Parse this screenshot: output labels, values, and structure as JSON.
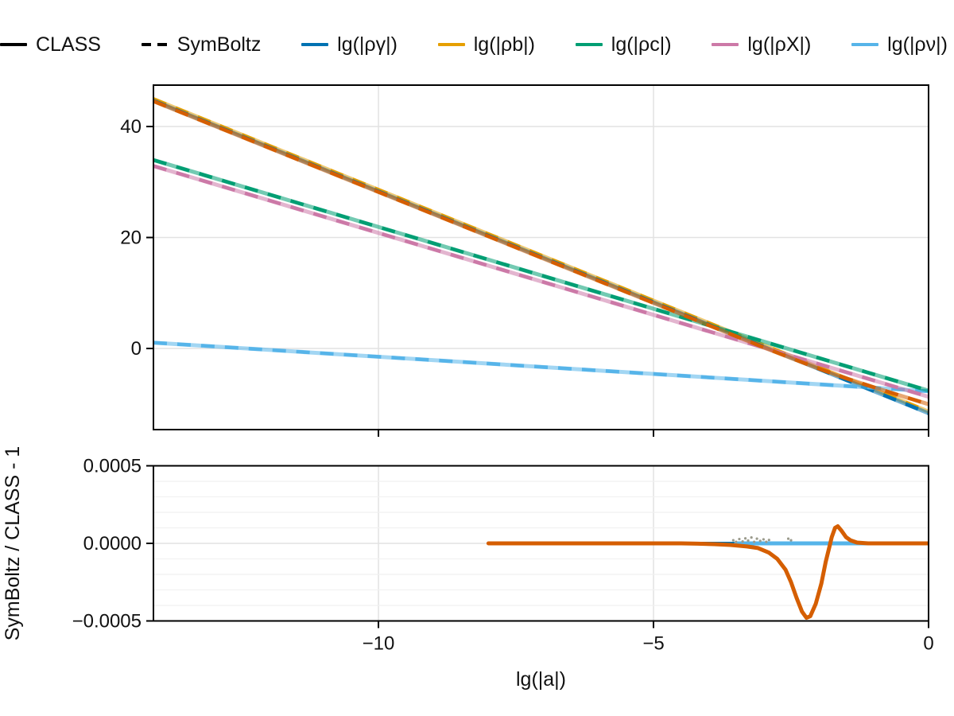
{
  "figure": {
    "background": "#ffffff"
  },
  "legend": {
    "entries": [
      {
        "id": "class",
        "label": "CLASS",
        "color": "#000000",
        "style": "solid"
      },
      {
        "id": "symboltz",
        "label": "SymBoltz",
        "color": "#000000",
        "style": "dashed"
      },
      {
        "id": "rho-gamma",
        "label": "lg(|ργ|)",
        "color": "#0072B2",
        "style": "solid"
      },
      {
        "id": "rho-b",
        "label": "lg(|ρb|)",
        "color": "#E69F00",
        "style": "solid"
      },
      {
        "id": "rho-c",
        "label": "lg(|ρc|)",
        "color": "#009E73",
        "style": "solid"
      },
      {
        "id": "rho-X",
        "label": "lg(|ρX|)",
        "color": "#CC79A7",
        "style": "solid"
      },
      {
        "id": "rho-nu",
        "label": "lg(|ρν|)",
        "color": "#56B4E9",
        "style": "solid"
      }
    ]
  },
  "chart_data": [
    {
      "type": "line",
      "panel": "main",
      "title": "",
      "xlabel": "",
      "ylabel": "",
      "xlim": [
        -14.09,
        0
      ],
      "ylim": [
        -14.62,
        47.46
      ],
      "xticks": [
        -10,
        -5,
        0
      ],
      "xtick_labels": [
        "",
        "",
        ""
      ],
      "yticks": [
        0,
        20,
        40
      ],
      "ytick_labels": [
        "0",
        "20",
        "40"
      ],
      "grid": true,
      "legend_position": "top-horizontal",
      "line_styles": {
        "CLASS": "solid",
        "SymBoltz": "dashed"
      },
      "series": [
        {
          "id": "rho-b",
          "label": "lg(|ρb|)",
          "color": "#E69F00",
          "points": [
            [
              -14.09,
              44.95
            ],
            [
              0,
              -11.36
            ]
          ]
        },
        {
          "id": "rho-gamma",
          "label": "lg(|ργ|)",
          "color": "#0072B2",
          "points": [
            [
              -14.09,
              44.65
            ],
            [
              0,
              -11.66
            ]
          ]
        },
        {
          "id": "rho-nu",
          "label": "lg(|ρν|)",
          "color": "#56B4E9",
          "points": [
            [
              -14.09,
              1.05
            ],
            [
              0,
              -7.7
            ]
          ]
        },
        {
          "id": "rho-X",
          "label": "lg(|ρX|)",
          "color": "#CC79A7",
          "points": [
            [
              -14.09,
              32.9
            ],
            [
              0,
              -8.7
            ]
          ]
        },
        {
          "id": "rho-c",
          "label": "lg(|ρc|)",
          "color": "#009E73",
          "points": [
            [
              -14.09,
              33.97
            ],
            [
              0,
              -7.6
            ]
          ]
        },
        {
          "id": "unlabeled-vermillion",
          "label": "",
          "color": "#D55E00",
          "points": [
            [
              -14.09,
              44.56
            ],
            [
              -12,
              36.2
            ],
            [
              -10,
              28.2
            ],
            [
              -8,
              20.2
            ],
            [
              -6,
              12.2
            ],
            [
              -5,
              8.2
            ],
            [
              -4,
              4.2
            ],
            [
              -3.5,
              2.21
            ],
            [
              -3,
              0.22
            ],
            [
              -2.7,
              -0.95
            ],
            [
              -2.4,
              -2.11
            ],
            [
              -2.1,
              -3.24
            ],
            [
              -1.9,
              -3.98
            ],
            [
              -1.75,
              -4.5
            ],
            [
              -1.6,
              -5.03
            ],
            [
              -1.4,
              -5.69
            ],
            [
              -1.2,
              -6.34
            ],
            [
              -1.0,
              -6.98
            ],
            [
              -0.8,
              -7.6
            ],
            [
              -0.6,
              -8.22
            ],
            [
              -0.4,
              -8.83
            ],
            [
              -0.2,
              -9.44
            ],
            [
              0,
              -10.04
            ]
          ]
        }
      ]
    },
    {
      "type": "line",
      "panel": "residual",
      "title": "",
      "xlabel": "lg(|a|)",
      "ylabel": "SymBoltz / CLASS - 1",
      "xlim": [
        -14.09,
        0
      ],
      "ylim": [
        -0.0005,
        0.0005
      ],
      "xticks": [
        -10,
        -5,
        0
      ],
      "xtick_labels": [
        "−10",
        "−5",
        "0"
      ],
      "yticks": [
        0.0005,
        0,
        -0.0005
      ],
      "ytick_labels": [
        "0.0005",
        "0.0000",
        "−0.0005"
      ],
      "minor_ytick_step": 0.0001,
      "grid": true,
      "series": [
        {
          "id": "residual-flat-blue",
          "label": "",
          "color": "#0072B2",
          "width": 4,
          "style": "solid",
          "points": [
            [
              -8,
              0
            ],
            [
              0,
              0
            ]
          ]
        },
        {
          "id": "residual-flat-sky",
          "label": "",
          "color": "#56B4E9",
          "width": 5,
          "style": "solid",
          "points": [
            [
              -3.5,
              0
            ],
            [
              0,
              0
            ]
          ]
        },
        {
          "id": "residual-vermillion",
          "label": "",
          "color": "#D55E00",
          "width": 5,
          "style": "solid",
          "points": [
            [
              -8,
              0
            ],
            [
              -7,
              0
            ],
            [
              -6,
              0
            ],
            [
              -5,
              0
            ],
            [
              -4.5,
              0
            ],
            [
              -4.2,
              -2e-06
            ],
            [
              -3.9,
              -5e-06
            ],
            [
              -3.6,
              -1e-05
            ],
            [
              -3.3,
              -2e-05
            ],
            [
              -3.1,
              -3e-05
            ],
            [
              -2.9,
              -6e-05
            ],
            [
              -2.75,
              -0.0001
            ],
            [
              -2.6,
              -0.00017
            ],
            [
              -2.5,
              -0.00025
            ],
            [
              -2.4,
              -0.00035
            ],
            [
              -2.3,
              -0.00044
            ],
            [
              -2.22,
              -0.00048
            ],
            [
              -2.15,
              -0.00047
            ],
            [
              -2.05,
              -0.00039
            ],
            [
              -1.95,
              -0.00026
            ],
            [
              -1.87,
              -0.00012
            ],
            [
              -1.8,
              -2e-05
            ],
            [
              -1.76,
              4e-05
            ],
            [
              -1.7,
              0.0001
            ],
            [
              -1.65,
              0.00011
            ],
            [
              -1.58,
              8e-05
            ],
            [
              -1.5,
              4e-05
            ],
            [
              -1.42,
              2e-05
            ],
            [
              -1.3,
              5e-06
            ],
            [
              -1.1,
              0
            ],
            [
              0,
              0
            ]
          ]
        }
      ],
      "noise_color": "#9b9b8d",
      "noise_points": [
        [
          -3.55,
          2e-05
        ],
        [
          -3.5,
          1e-05
        ],
        [
          -3.44,
          2.8e-05
        ],
        [
          -3.38,
          1.2e-05
        ],
        [
          -3.33,
          3.2e-05
        ],
        [
          -3.28,
          1.8e-05
        ],
        [
          -3.22,
          3.8e-05
        ],
        [
          -3.17,
          1e-05
        ],
        [
          -3.12,
          3e-05
        ],
        [
          -3.06,
          1.6e-05
        ],
        [
          -3.0,
          2.6e-05
        ],
        [
          -2.95,
          1e-05
        ],
        [
          -2.9,
          2.2e-05
        ],
        [
          -2.55,
          3e-05
        ],
        [
          -2.5,
          2e-05
        ]
      ]
    }
  ]
}
